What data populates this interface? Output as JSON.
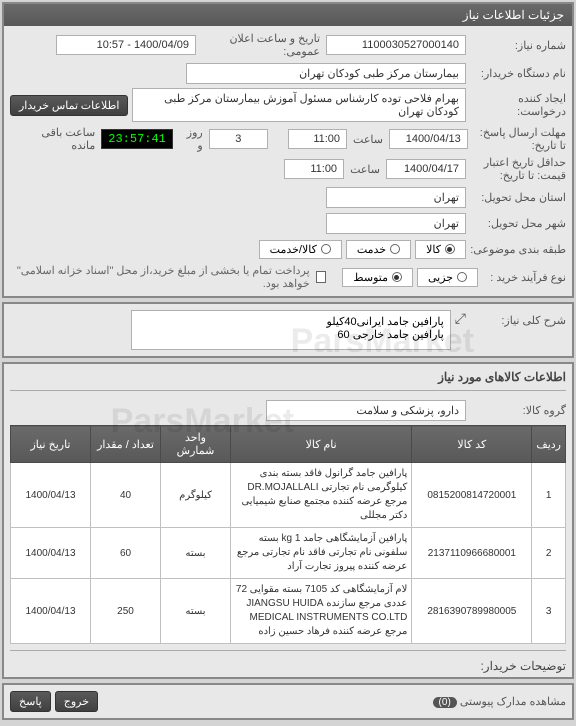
{
  "header": {
    "title": "جزئیات اطلاعات نیاز"
  },
  "form": {
    "need_no_label": "شماره نیاز:",
    "need_no": "1100030527000140",
    "announce_label": "تاریخ و ساعت اعلان عمومی:",
    "announce_value": "1400/04/09 - 10:57",
    "buyer_label": "نام دستگاه خریدار:",
    "buyer_value": "بیمارستان مرکز طبی کودکان تهران",
    "creator_label": "ایجاد کننده درخواست:",
    "creator_value": "بهرام فلاحی توده کارشناس مسئول آموزش بیمارستان مرکز طبی کودکان تهران",
    "contact_btn": "اطلاعات تماس خریدار",
    "deadline_label": "مهلت ارسال پاسخ: تا تاریخ:",
    "deadline_date": "1400/04/13",
    "deadline_time_label": "ساعت",
    "deadline_time": "11:00",
    "day_count": "3",
    "day_label": "روز و",
    "counter": "23:57:41",
    "remain_label": "ساعت باقی مانده",
    "validity_label": "حداقل تاریخ اعتبار قیمت: تا تاریخ:",
    "validity_date": "1400/04/17",
    "validity_time": "11:00",
    "deliver_state_label": "استان محل تحویل:",
    "deliver_state": "تهران",
    "deliver_city_label": "شهر محل تحویل:",
    "deliver_city": "تهران",
    "budget_label": "طبقه بندی موضوعی:",
    "budget_opts": {
      "goods": "کالا",
      "service": "خدمت",
      "both": "کالا/خدمت"
    },
    "process_label": "نوع فرآیند خرید :",
    "process_opts": {
      "low": "جزیی",
      "mid": "متوسط"
    },
    "pay_note_chk_label": "پرداخت تمام یا بخشی از مبلغ خرید،از محل \"اسناد خزانه اسلامی\" خواهد بود.",
    "desc_label": "شرح کلی نیاز:",
    "desc_value": "پارافین جامد ایرانی40کیلو\nپارافین جامد خارجی 60"
  },
  "items": {
    "section_title": "اطلاعات کالاهای مورد نیاز",
    "group_label": "گروه کالا:",
    "group_value": "دارو، پزشکی و سلامت",
    "columns": {
      "idx": "ردیف",
      "code": "کد کالا",
      "name": "نام کالا",
      "unit": "واحد شمارش",
      "qty": "تعداد / مقدار",
      "date": "تاریخ نیاز"
    },
    "rows": [
      {
        "idx": "1",
        "code": "0815200814720001",
        "name": "پارافین جامد گرانول فاقد بسته بندی کیلوگرمی نام تجارتی DR.MOJALLALI مرجع عرضه کننده مجتمع صنایع شیمیایی دکتر مجللی",
        "unit": "کیلوگرم",
        "qty": "40",
        "date": "1400/04/13"
      },
      {
        "idx": "2",
        "code": "2137110966680001",
        "name": "پارافین آزمایشگاهی جامد 1 kg بسته سلفونی نام تجارتی فاقد نام تجارتی مرجع عرضه کننده پیروز تجارت آراد",
        "unit": "بسته",
        "qty": "60",
        "date": "1400/04/13"
      },
      {
        "idx": "3",
        "code": "2816390789980005",
        "name": "لام آزمایشگاهی کد 7105 بسته مقوایی 72 عددی مرجع سازنده JIANGSU HUIDA MEDICAL INSTRUMENTS CO.LTD مرجع عرضه کننده فرهاد حسین زاده",
        "unit": "بسته",
        "qty": "250",
        "date": "1400/04/13"
      }
    ]
  },
  "buyer_note": {
    "label": "توضیحات خریدار:"
  },
  "footer": {
    "attach_label": "مشاهده مدارک پیوستی",
    "attach_count": "(0)",
    "exit": "خروج",
    "reply": "پاسخ"
  },
  "colors": {
    "header_bg": "#606060",
    "panel_bg": "#e8e8e8"
  }
}
